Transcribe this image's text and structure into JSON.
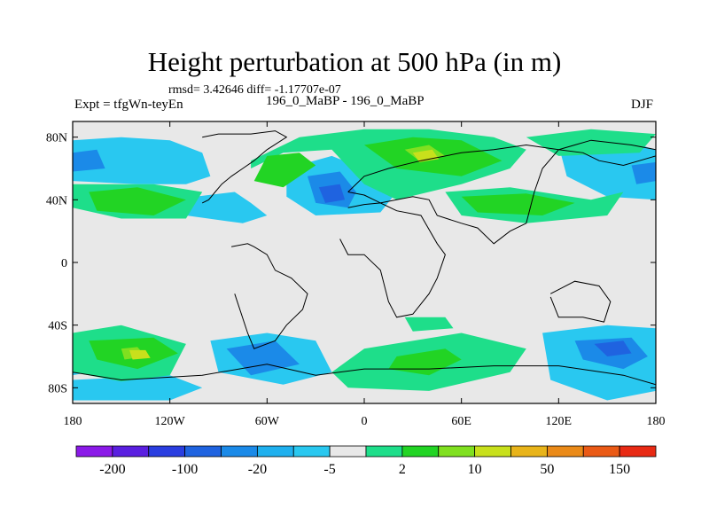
{
  "title": "Height perturbation at 500 hPa (in m)",
  "stats": "rmsd= 3.42646 diff= -1.17707e-07",
  "left_label": "Expt = tfgWn-teyEn",
  "center_label": "196_0_MaBP - 196_0_MaBP",
  "right_label": "DJF",
  "map": {
    "lon_ticks": [
      "180",
      "120W",
      "60W",
      "0",
      "60E",
      "120E",
      "180"
    ],
    "lat_ticks": [
      "80N",
      "40N",
      "0",
      "40S",
      "80S"
    ],
    "lon_values": [
      -180,
      -120,
      -60,
      0,
      60,
      120,
      180
    ],
    "lat_values": [
      80,
      40,
      0,
      -40,
      -80
    ],
    "lon_range": [
      -180,
      180
    ],
    "lat_range": [
      -90,
      90
    ],
    "background_color": "#e8e8e8",
    "coastline_color": "#000000"
  },
  "colorbar": {
    "labels": [
      "-200",
      "-100",
      "-20",
      "-5",
      "2",
      "10",
      "50",
      "150"
    ],
    "colors": [
      "#8b1ae8",
      "#5a1fe0",
      "#2a3ee0",
      "#1f63e0",
      "#1b8ae8",
      "#1fb0ee",
      "#29c8f0",
      "#e8e8e8",
      "#1ede8a",
      "#22d424",
      "#80e020",
      "#c8e01c",
      "#e8b41a",
      "#ea8a18",
      "#ea5a16",
      "#e82a14"
    ]
  },
  "contour_fills": [
    {
      "level": "cyan",
      "color": "#29c8f0",
      "regions": [
        {
          "lon": [
            -180,
            -150,
            -120,
            -100,
            -95,
            -110,
            -140,
            -180
          ],
          "lat": [
            78,
            80,
            78,
            70,
            55,
            50,
            50,
            52
          ]
        },
        {
          "lon": [
            -120,
            -80,
            -70,
            -60,
            -75,
            -110
          ],
          "lat": [
            40,
            45,
            38,
            30,
            25,
            30
          ]
        },
        {
          "lon": [
            -48,
            -20,
            0,
            20,
            10,
            -30,
            -48
          ],
          "lat": [
            60,
            68,
            60,
            45,
            32,
            30,
            42
          ]
        },
        {
          "lon": [
            -180,
            -160,
            -170,
            -180
          ],
          "lat": [
            -50,
            -52,
            -70,
            -72
          ]
        },
        {
          "lon": [
            -180,
            -120,
            -100,
            -120,
            -180
          ],
          "lat": [
            -75,
            -72,
            -80,
            -88,
            -88
          ]
        },
        {
          "lon": [
            -95,
            -60,
            -30,
            -20,
            -50,
            -90
          ],
          "lat": [
            -50,
            -45,
            -50,
            -70,
            -78,
            -70
          ]
        },
        {
          "lon": [
            110,
            150,
            180,
            180,
            150,
            115
          ],
          "lat": [
            -45,
            -40,
            -42,
            -82,
            -88,
            -75
          ]
        },
        {
          "lon": [
            120,
            160,
            180,
            180,
            150,
            125
          ],
          "lat": [
            75,
            78,
            72,
            40,
            42,
            55
          ]
        }
      ]
    },
    {
      "level": "blue",
      "color": "#1b8ae8",
      "regions": [
        {
          "lon": [
            -180,
            -165,
            -160,
            -180
          ],
          "lat": [
            70,
            72,
            60,
            58
          ]
        },
        {
          "lon": [
            -35,
            -15,
            -5,
            -10,
            -30
          ],
          "lat": [
            55,
            58,
            45,
            35,
            38
          ]
        },
        {
          "lon": [
            -85,
            -55,
            -40,
            -70
          ],
          "lat": [
            -55,
            -50,
            -65,
            -72
          ]
        },
        {
          "lon": [
            130,
            165,
            175,
            160,
            135
          ],
          "lat": [
            -50,
            -48,
            -60,
            -68,
            -62
          ]
        },
        {
          "lon": [
            165,
            180,
            180,
            168
          ],
          "lat": [
            62,
            64,
            52,
            50
          ]
        }
      ]
    },
    {
      "level": "dark-blue",
      "color": "#1f63e0",
      "regions": [
        {
          "lon": [
            -28,
            -15,
            -12,
            -24
          ],
          "lat": [
            48,
            50,
            40,
            38
          ]
        },
        {
          "lon": [
            142,
            160,
            165,
            150
          ],
          "lat": [
            -52,
            -50,
            -58,
            -60
          ]
        }
      ]
    },
    {
      "level": "green-light",
      "color": "#1ede8a",
      "regions": [
        {
          "lon": [
            -70,
            -40,
            0,
            40,
            80,
            100,
            90,
            60,
            20,
            0,
            -20,
            -50,
            -70
          ],
          "lat": [
            65,
            80,
            85,
            85,
            80,
            72,
            60,
            50,
            40,
            50,
            72,
            70,
            60
          ]
        },
        {
          "lon": [
            -180,
            -130,
            -100,
            -110,
            -150,
            -180
          ],
          "lat": [
            50,
            50,
            45,
            28,
            28,
            35
          ]
        },
        {
          "lon": [
            50,
            90,
            140,
            160,
            150,
            100,
            60
          ],
          "lat": [
            45,
            48,
            40,
            45,
            30,
            25,
            30
          ]
        },
        {
          "lon": [
            100,
            140,
            180,
            170,
            120
          ],
          "lat": [
            80,
            85,
            82,
            70,
            68
          ]
        },
        {
          "lon": [
            -180,
            -150,
            -110,
            -120,
            -150,
            -180
          ],
          "lat": [
            -45,
            -40,
            -52,
            -72,
            -76,
            -70
          ]
        },
        {
          "lon": [
            0,
            60,
            100,
            90,
            40,
            -10,
            -20
          ],
          "lat": [
            -55,
            -45,
            -55,
            -70,
            -82,
            -80,
            -70
          ]
        },
        {
          "lon": [
            25,
            50,
            55,
            30
          ],
          "lat": [
            -35,
            -35,
            -42,
            -44
          ]
        }
      ]
    },
    {
      "level": "green",
      "color": "#22d424",
      "regions": [
        {
          "lon": [
            -60,
            -40,
            -30,
            -50,
            -68
          ],
          "lat": [
            68,
            70,
            62,
            48,
            52
          ]
        },
        {
          "lon": [
            0,
            30,
            60,
            85,
            60,
            20
          ],
          "lat": [
            75,
            80,
            78,
            65,
            55,
            60
          ]
        },
        {
          "lon": [
            -170,
            -140,
            -110,
            -130,
            -165
          ],
          "lat": [
            45,
            48,
            40,
            30,
            33
          ]
        },
        {
          "lon": [
            60,
            100,
            130,
            110,
            70
          ],
          "lat": [
            42,
            44,
            38,
            30,
            32
          ]
        },
        {
          "lon": [
            -170,
            -130,
            -115,
            -140,
            -165
          ],
          "lat": [
            -50,
            -48,
            -58,
            -68,
            -62
          ]
        },
        {
          "lon": [
            20,
            50,
            60,
            40,
            15
          ],
          "lat": [
            -60,
            -55,
            -62,
            -72,
            -68
          ]
        }
      ]
    },
    {
      "level": "yellow-green",
      "color": "#80e020",
      "regions": [
        {
          "lon": [
            25,
            40,
            50,
            35
          ],
          "lat": [
            72,
            75,
            68,
            64
          ]
        },
        {
          "lon": [
            -150,
            -140,
            -135,
            -148
          ],
          "lat": [
            -55,
            -54,
            -60,
            -62
          ]
        }
      ]
    },
    {
      "level": "yellow",
      "color": "#c8e01c",
      "regions": [
        {
          "lon": [
            30,
            42,
            46,
            34
          ],
          "lat": [
            70,
            72,
            66,
            64
          ]
        },
        {
          "lon": [
            -145,
            -135,
            -132,
            -143
          ],
          "lat": [
            -56,
            -56,
            -61,
            -62
          ]
        }
      ]
    }
  ],
  "coastlines": [
    {
      "lon": [
        -100,
        -90,
        -70,
        -55,
        -48,
        -60,
        -68,
        -75,
        -82,
        -88,
        -92,
        -96,
        -100
      ],
      "lat": [
        80,
        82,
        82,
        84,
        80,
        72,
        65,
        60,
        55,
        50,
        45,
        40,
        38
      ]
    },
    {
      "lon": [
        -82,
        -72,
        -68,
        -60,
        -55,
        -45,
        -35,
        -38,
        -48,
        -55,
        -68,
        -72,
        -80
      ],
      "lat": [
        10,
        12,
        10,
        5,
        -5,
        -10,
        -20,
        -30,
        -40,
        -50,
        -55,
        -45,
        -20
      ]
    },
    {
      "lon": [
        -10,
        0,
        10,
        20,
        35,
        45,
        50,
        45,
        40,
        30,
        20,
        15,
        10,
        0,
        -10,
        -15
      ],
      "lat": [
        35,
        37,
        38,
        33,
        30,
        12,
        5,
        -10,
        -20,
        -33,
        -35,
        -25,
        -5,
        5,
        5,
        15
      ]
    },
    {
      "lon": [
        -10,
        0,
        15,
        35,
        60,
        80,
        100,
        120,
        135,
        145,
        160,
        170,
        180,
        180,
        165,
        140,
        130,
        120,
        110,
        105,
        100,
        90,
        80,
        70,
        60,
        45,
        40,
        30,
        20,
        10,
        0,
        -10
      ],
      "lat": [
        45,
        55,
        60,
        65,
        70,
        72,
        75,
        72,
        70,
        65,
        62,
        65,
        68,
        72,
        75,
        78,
        75,
        72,
        60,
        45,
        25,
        20,
        12,
        22,
        25,
        30,
        40,
        42,
        40,
        38,
        43,
        45
      ]
    },
    {
      "lon": [
        115,
        130,
        145,
        152,
        148,
        135,
        120,
        115
      ],
      "lat": [
        -20,
        -12,
        -15,
        -25,
        -38,
        -35,
        -35,
        -22
      ]
    },
    {
      "lon": [
        -180,
        -150,
        -100,
        -60,
        -30,
        0,
        40,
        80,
        120,
        160,
        180
      ],
      "lat": [
        -70,
        -75,
        -72,
        -65,
        -72,
        -68,
        -68,
        -66,
        -66,
        -72,
        -78
      ]
    }
  ]
}
